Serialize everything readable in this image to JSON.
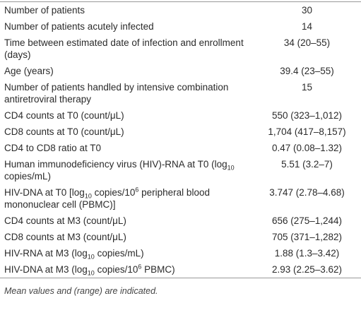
{
  "table": {
    "rows": [
      {
        "label": [
          "Number of patients"
        ],
        "value": "30"
      },
      {
        "label": [
          "Number of patients acutely infected"
        ],
        "value": "14"
      },
      {
        "label": [
          "Time between estimated date of infection and enrollment (days)"
        ],
        "value": "34 (20–55)"
      },
      {
        "label": [
          "Age (years)"
        ],
        "value": "39.4 (23–55)"
      },
      {
        "label": [
          "Number of patients handled by intensive combination antiretroviral therapy"
        ],
        "value": "15"
      },
      {
        "label": [
          "CD4 counts at T0 (count/μL)"
        ],
        "value": "550 (323–1,012)"
      },
      {
        "label": [
          "CD8 counts at T0 (count/μL)"
        ],
        "value": "1,704 (417–8,157)"
      },
      {
        "label": [
          "CD4 to CD8 ratio at T0"
        ],
        "value": "0.47 (0.08–1.32)"
      },
      {
        "label": [
          "Human immunodeficiency virus (HIV)-RNA at T0 (log",
          {
            "sub": "10"
          },
          " copies/mL)"
        ],
        "value": "5.51 (3.2–7)"
      },
      {
        "label": [
          "HIV-DNA at T0 [log",
          {
            "sub": "10"
          },
          " copies/10",
          {
            "sup": "6"
          },
          " peripheral blood mononuclear cell (PBMC)]"
        ],
        "value": "3.747 (2.78–4.68)"
      },
      {
        "label": [
          "CD4 counts at M3 (count/μL)"
        ],
        "value": "656 (275–1,244)"
      },
      {
        "label": [
          "CD8 counts at M3 (count/μL)"
        ],
        "value": "705 (371–1,282)"
      },
      {
        "label": [
          "HIV-RNA at M3 (log",
          {
            "sub": "10"
          },
          " copies/mL)"
        ],
        "value": "1.88 (1.3–3.42)"
      },
      {
        "label": [
          "HIV-DNA at M3 (log",
          {
            "sub": "10"
          },
          " copies/10",
          {
            "sup": "6"
          },
          " PBMC)"
        ],
        "value": "2.93 (2.25–3.62)"
      }
    ]
  },
  "footnote": "Mean values and (range) are indicated."
}
